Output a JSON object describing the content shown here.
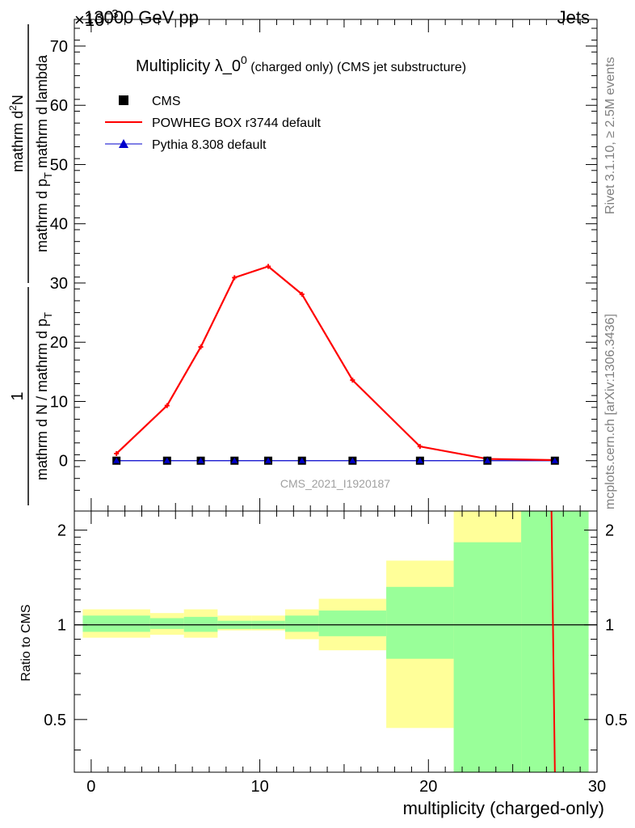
{
  "header": {
    "left": "13000 GeV pp",
    "right": "Jets",
    "exponent": "×10",
    "exponent_power": "−3",
    "side_top": "Rivet 3.1.10, ≥ 2.5M events",
    "side_bottom": "mcplots.cern.ch [arXiv:1306.3436]"
  },
  "colors": {
    "cms": "#000000",
    "powheg": "#ff0000",
    "pythia": "#0000cc",
    "band_inner": "#99ff99",
    "band_outer": "#ffff99",
    "watermark": "#a0a0a0"
  },
  "chart_data": [
    {
      "type": "line",
      "title": "Multiplicity λ_0",
      "title_sup": "0",
      "title_suffix": " (charged only) (CMS jet substructure)",
      "ylabel_num": "1",
      "ylabel_den": "mathrm d N / mathrm d p",
      "ylabel_den_sub": "T",
      "ylabel_rhs": "mathrm d",
      "ylabel_rhs_sup": "2",
      "ylabel_rhs_n": "N",
      "ylabel_rhs_den": "mathrm d p",
      "ylabel_rhs_den_sub": "T",
      "ylabel_rhs_den_tail": " mathrm d lambda",
      "ylim": [
        -8.5,
        74.5
      ],
      "yticks": [
        0,
        10,
        20,
        30,
        40,
        50,
        60,
        70
      ],
      "xlim": [
        -1,
        30
      ],
      "watermark": "CMS_2021_I1920187",
      "legend": [
        {
          "key": "cms",
          "label": "CMS"
        },
        {
          "key": "powheg",
          "label": "POWHEG BOX r3744 default"
        },
        {
          "key": "pythia",
          "label": "Pythia 8.308 default"
        }
      ],
      "x": [
        1.5,
        4.5,
        6.5,
        8.5,
        10.5,
        12.5,
        15.5,
        19.5,
        23.5,
        27.5
      ],
      "series": [
        {
          "name": "CMS",
          "key": "cms",
          "values": [
            0,
            0,
            0,
            0,
            0,
            0,
            0,
            0,
            0,
            0
          ]
        },
        {
          "name": "POWHEG BOX r3744 default",
          "key": "powheg",
          "values": [
            1.2,
            9.3,
            19.2,
            30.9,
            32.8,
            28.1,
            13.6,
            2.4,
            0.3,
            0.1
          ]
        },
        {
          "name": "Pythia 8.308 default",
          "key": "pythia",
          "values": [
            0,
            0,
            0,
            0,
            0,
            0,
            0,
            0,
            0,
            0
          ]
        }
      ]
    },
    {
      "type": "area",
      "ylabel": "Ratio to CMS",
      "xlabel": "multiplicity (charged-only)",
      "ylim": [
        0.34,
        2.3
      ],
      "yticks": [
        0.5,
        1,
        2
      ],
      "ytick_labels": [
        "0.5",
        "1",
        "2"
      ],
      "xlim": [
        -1,
        30
      ],
      "xticks": [
        0,
        10,
        20,
        30
      ],
      "xtick_labels": [
        "0",
        "10",
        "20",
        "30"
      ],
      "bins": [
        {
          "x0": -0.5,
          "x1": 3.5,
          "inner": [
            0.95,
            1.07
          ],
          "outer": [
            0.91,
            1.12
          ]
        },
        {
          "x0": 3.5,
          "x1": 5.5,
          "inner": [
            0.97,
            1.05
          ],
          "outer": [
            0.93,
            1.09
          ]
        },
        {
          "x0": 5.5,
          "x1": 7.5,
          "inner": [
            0.95,
            1.06
          ],
          "outer": [
            0.91,
            1.12
          ]
        },
        {
          "x0": 7.5,
          "x1": 9.5,
          "inner": [
            0.97,
            1.03
          ],
          "outer": [
            0.96,
            1.07
          ]
        },
        {
          "x0": 9.5,
          "x1": 11.5,
          "inner": [
            0.97,
            1.03
          ],
          "outer": [
            0.96,
            1.07
          ]
        },
        {
          "x0": 11.5,
          "x1": 13.5,
          "inner": [
            0.95,
            1.07
          ],
          "outer": [
            0.9,
            1.12
          ]
        },
        {
          "x0": 13.5,
          "x1": 17.5,
          "inner": [
            0.92,
            1.11
          ],
          "outer": [
            0.83,
            1.21
          ]
        },
        {
          "x0": 17.5,
          "x1": 21.5,
          "inner": [
            0.78,
            1.32
          ],
          "outer": [
            0.47,
            1.6
          ]
        },
        {
          "x0": 21.5,
          "x1": 25.5,
          "inner": [
            0.34,
            1.83
          ],
          "outer": [
            0.34,
            2.3
          ]
        },
        {
          "x0": 25.5,
          "x1": 29.5,
          "inner": [
            0.34,
            2.3
          ],
          "outer": [
            0.34,
            2.3
          ]
        }
      ],
      "ratio_line": {
        "key": "powheg",
        "x": [
          27.3,
          27.5
        ],
        "y": [
          2.3,
          0.34
        ]
      },
      "reference": 1
    }
  ]
}
